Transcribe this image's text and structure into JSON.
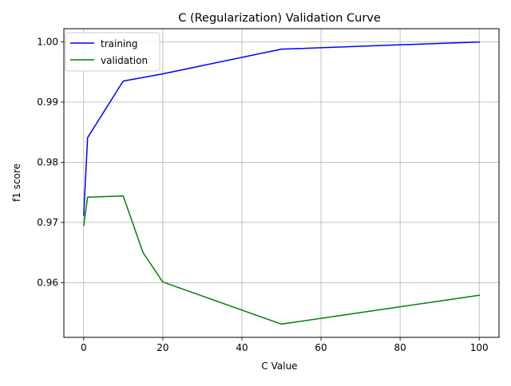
{
  "chart_data": {
    "type": "line",
    "title": "C (Regularization) Validation Curve",
    "xlabel": "C Value",
    "ylabel": "f1 score",
    "xlim": [
      -5,
      105
    ],
    "ylim": [
      0.9509,
      1.0022
    ],
    "xticks": [
      0,
      20,
      40,
      60,
      80,
      100
    ],
    "xtick_labels": [
      "0",
      "20",
      "40",
      "60",
      "80",
      "100"
    ],
    "yticks": [
      0.96,
      0.97,
      0.98,
      0.99,
      1.0
    ],
    "ytick_labels": [
      "0.96",
      "0.97",
      "0.98",
      "0.99",
      "1.00"
    ],
    "grid": true,
    "legend_position": "top-left",
    "series": [
      {
        "name": "training",
        "color": "#0000ff",
        "x": [
          0.01,
          1,
          10,
          20,
          50,
          100
        ],
        "y": [
          0.9712,
          0.9841,
          0.9935,
          0.9947,
          0.9988,
          1.0
        ]
      },
      {
        "name": "validation",
        "color": "#008000",
        "x": [
          0.01,
          1,
          10,
          15,
          20,
          50,
          100
        ],
        "y": [
          0.9695,
          0.9742,
          0.9744,
          0.965,
          0.9601,
          0.9531,
          0.9579
        ]
      }
    ]
  }
}
